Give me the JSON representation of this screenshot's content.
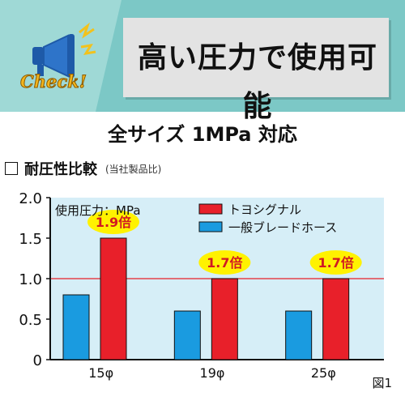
{
  "banner": {
    "badge_text": "Check!",
    "title": "高い圧力で使用可能"
  },
  "subtitle": "全サイズ 1MPa 対応",
  "section": {
    "title": "耐圧性比較",
    "note": "(当社製品比)"
  },
  "chart_data": {
    "type": "bar",
    "title": "",
    "unit_label": "使用圧力：MPa",
    "categories": [
      "15φ",
      "19φ",
      "25φ"
    ],
    "series": [
      {
        "name": "トヨシグナル",
        "values": [
          1.5,
          1.0,
          1.0
        ],
        "color": "#e8202a"
      },
      {
        "name": "一般ブレードホース",
        "values": [
          0.8,
          0.6,
          0.6
        ],
        "color": "#1a9be0"
      }
    ],
    "ratio_labels": [
      "1.9倍",
      "1.7倍",
      "1.7倍"
    ],
    "yticks": [
      "0",
      "0.5",
      "1.0",
      "1.5",
      "2.0"
    ],
    "ylim": [
      0,
      2.0
    ],
    "figure_label": "図1",
    "background_color": "#d6eef7",
    "reference_line_color": "#e8202a",
    "callout_color": "#fff200"
  }
}
